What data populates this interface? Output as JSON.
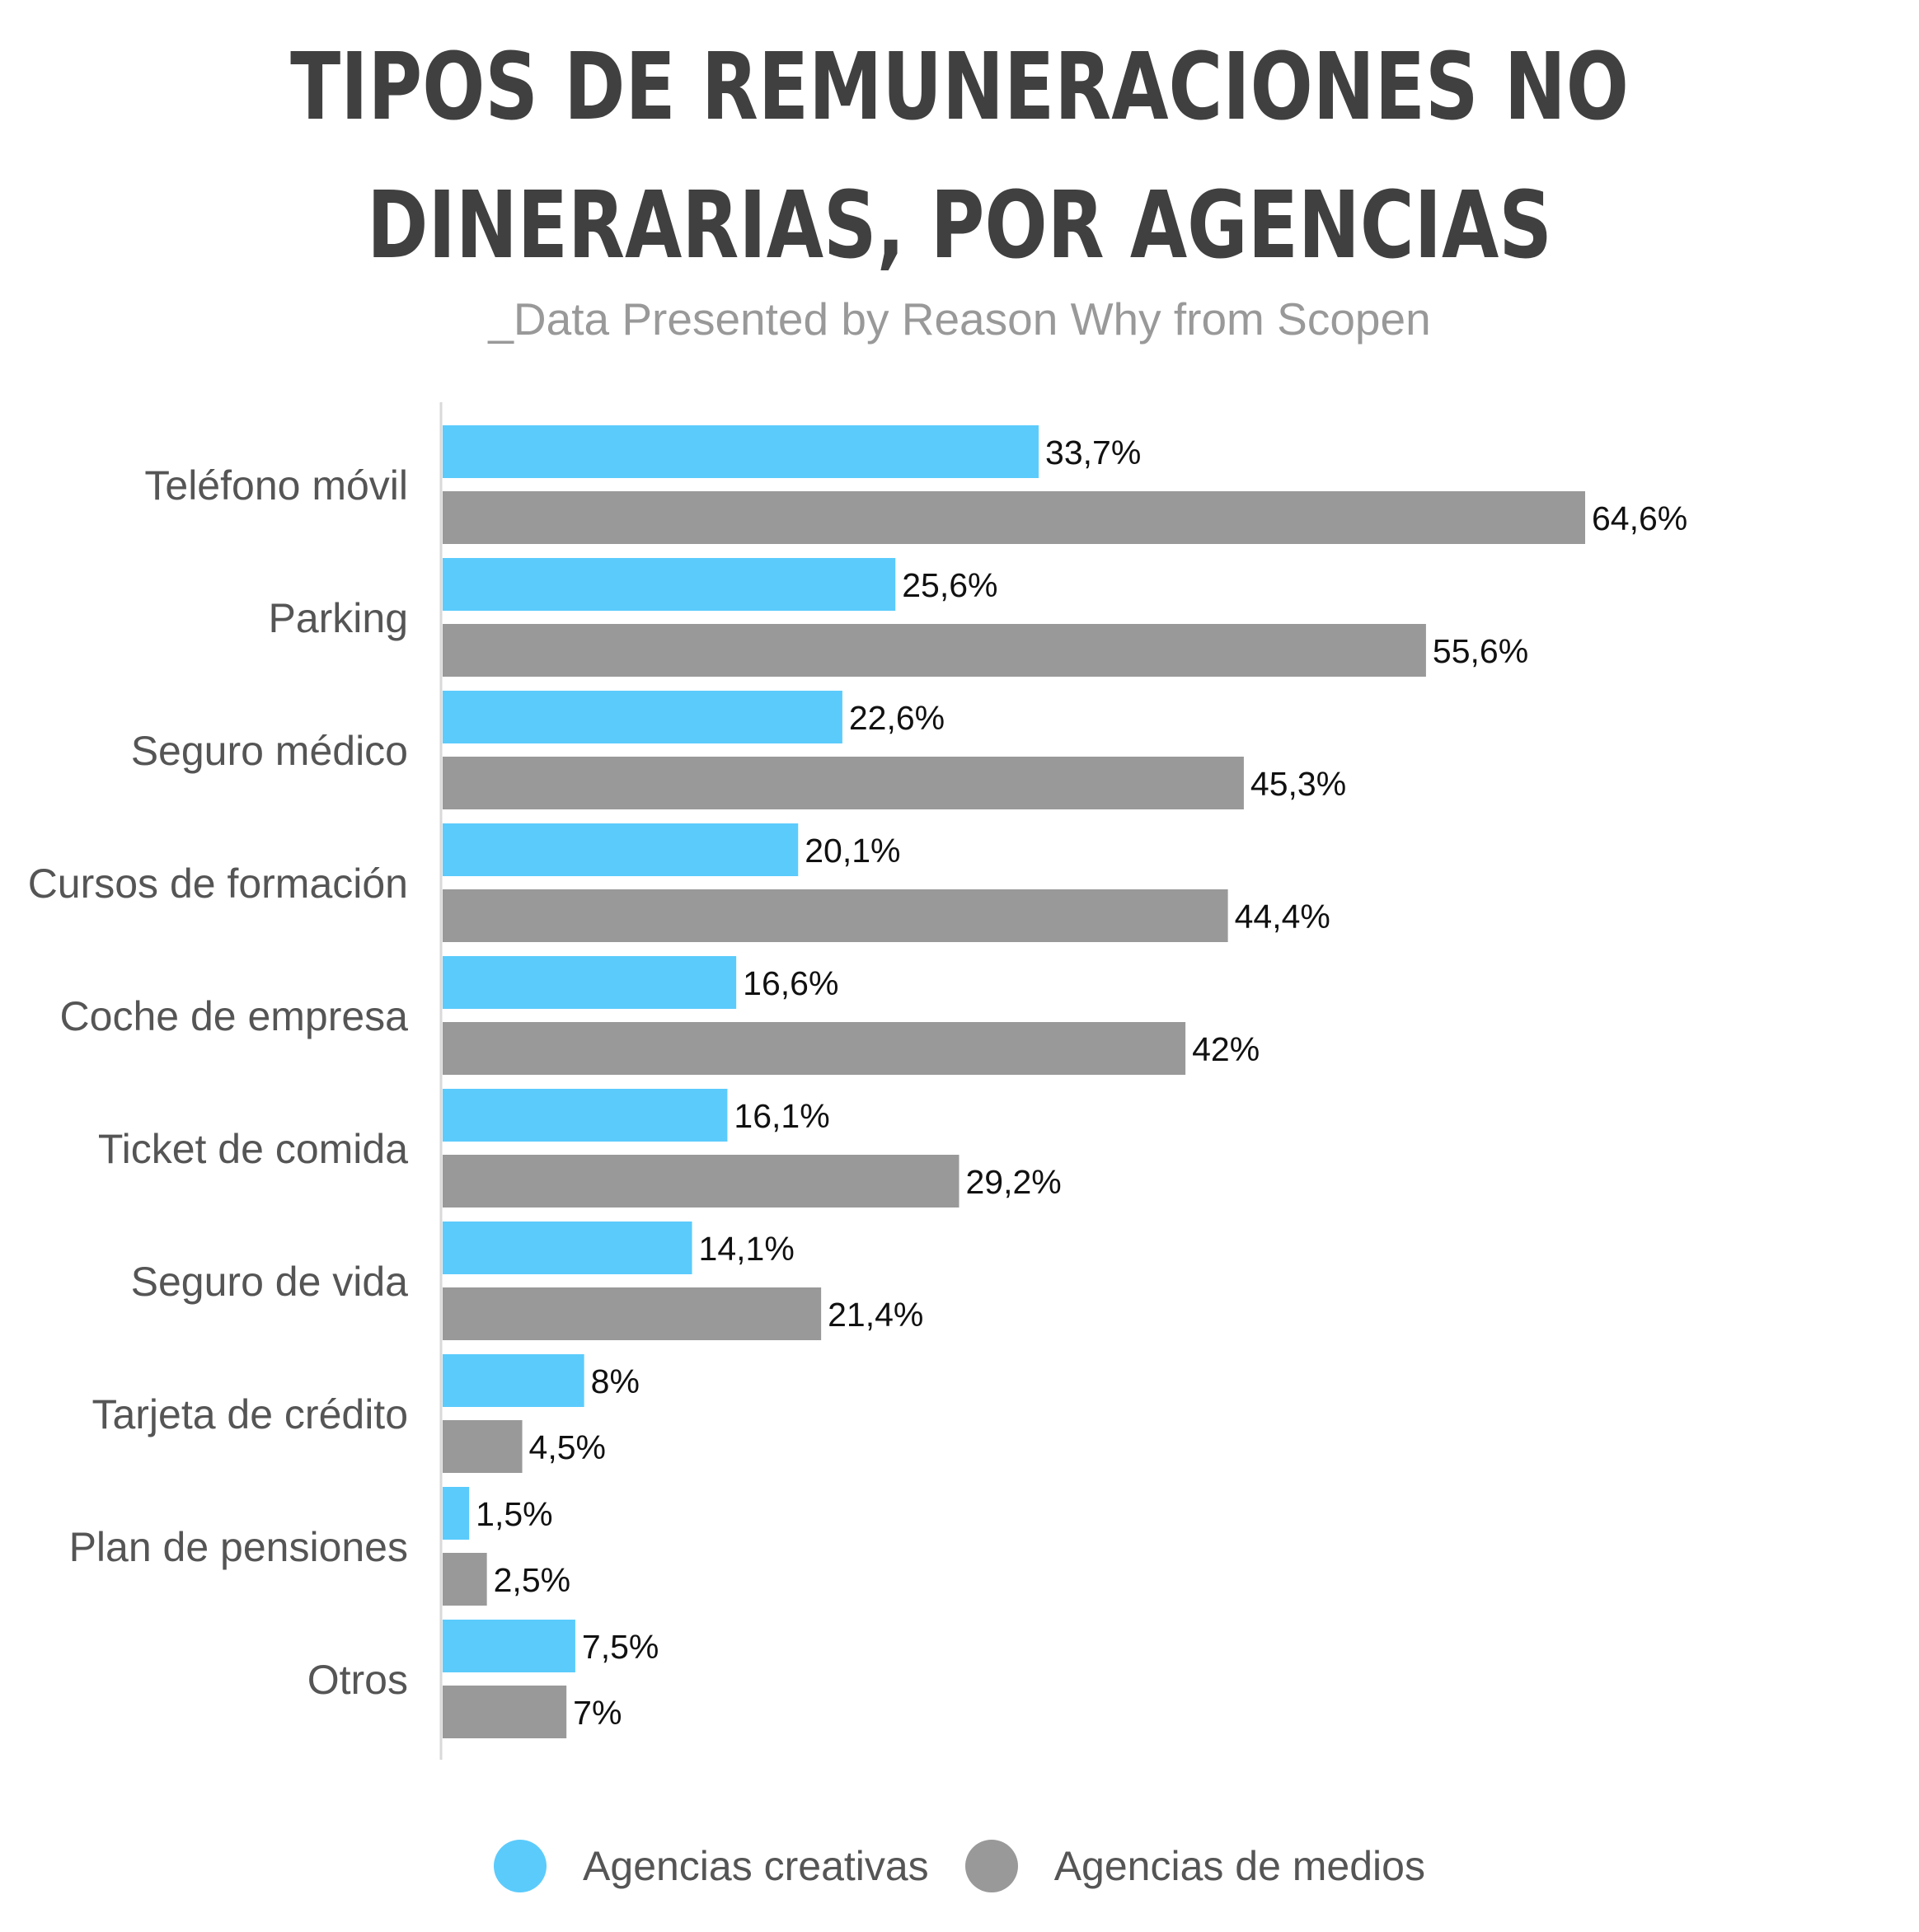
{
  "chart_data": {
    "type": "bar",
    "orientation": "horizontal",
    "title": "TIPOS DE REMUNERACIONES NO DINERARIAS, POR AGENCIAS",
    "subtitle": "_Data Presented by Reason Why from Scopen",
    "categories": [
      "Teléfono móvil",
      "Parking",
      "Seguro médico",
      "Cursos de formación",
      "Coche de empresa",
      "Ticket de comida",
      "Seguro de vida",
      "Tarjeta de crédito",
      "Plan de pensiones",
      "Otros"
    ],
    "series": [
      {
        "name": "Agencias creativas",
        "color": "#5BCBFC",
        "values": [
          33.7,
          25.6,
          22.6,
          20.1,
          16.6,
          16.1,
          14.1,
          8,
          1.5,
          7.5
        ],
        "labels": [
          "33,7%",
          "25,6%",
          "22,6%",
          "20,1%",
          "16,6%",
          "16,1%",
          "14,1%",
          "8%",
          "1,5%",
          "7,5%"
        ]
      },
      {
        "name": "Agencias de medios",
        "color": "#999999",
        "values": [
          64.6,
          55.6,
          45.3,
          44.4,
          42,
          29.2,
          21.4,
          4.5,
          2.5,
          7
        ],
        "labels": [
          "64,6%",
          "55,6%",
          "45,3%",
          "44,4%",
          "42%",
          "29,2%",
          "21,4%",
          "4,5%",
          "2,5%",
          "7%"
        ]
      }
    ],
    "xlim": [
      0,
      64.6
    ],
    "grid": false,
    "legend_position": "bottom"
  }
}
